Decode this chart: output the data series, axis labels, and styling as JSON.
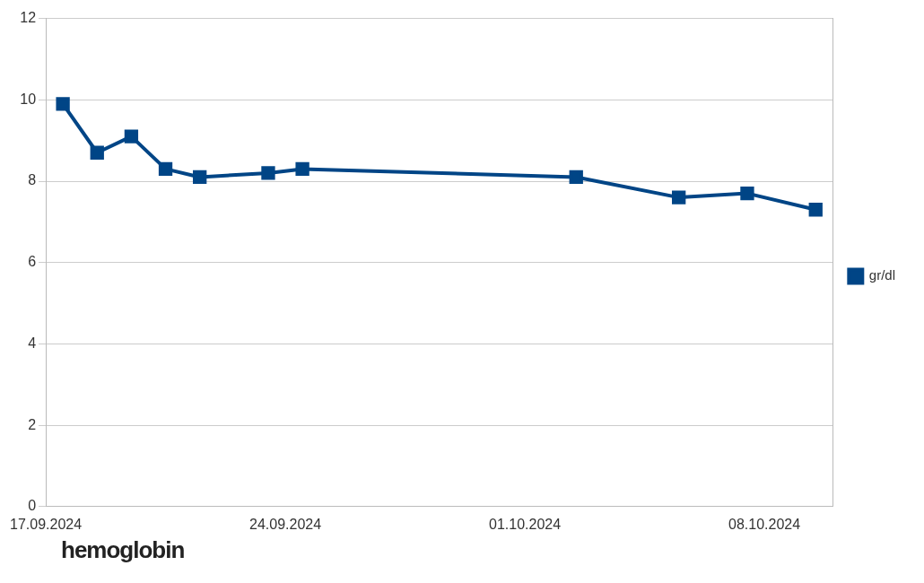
{
  "chart_data": {
    "type": "line",
    "x": [
      "2024-09-17T12:00",
      "2024-09-18T12:00",
      "2024-09-19T12:00",
      "2024-09-20T12:00",
      "2024-09-21T12:00",
      "2024-09-23T12:00",
      "2024-09-24T12:00",
      "2024-10-02T12:00",
      "2024-10-05T12:00",
      "2024-10-07T12:00",
      "2024-10-09T12:00"
    ],
    "series": [
      {
        "name": "gr/dl",
        "color": "#004586",
        "values": [
          9.9,
          8.7,
          9.1,
          8.3,
          8.1,
          8.2,
          8.3,
          8.1,
          7.6,
          7.7,
          7.3
        ]
      }
    ],
    "xlim": [
      "2024-09-17",
      "2024-10-10"
    ],
    "xticks": [
      {
        "value": "2024-09-17",
        "label": "17.09.2024"
      },
      {
        "value": "2024-09-24",
        "label": "24.09.2024"
      },
      {
        "value": "2024-10-01",
        "label": "01.10.2024"
      },
      {
        "value": "2024-10-08",
        "label": "08.10.2024"
      }
    ],
    "ylim": [
      0,
      12
    ],
    "yticks": [
      0,
      2,
      4,
      6,
      8,
      10,
      12
    ],
    "grid": "y",
    "legend": "right",
    "marker": "square",
    "line_style": "solid",
    "annotations": [
      "hemoglobin"
    ]
  }
}
